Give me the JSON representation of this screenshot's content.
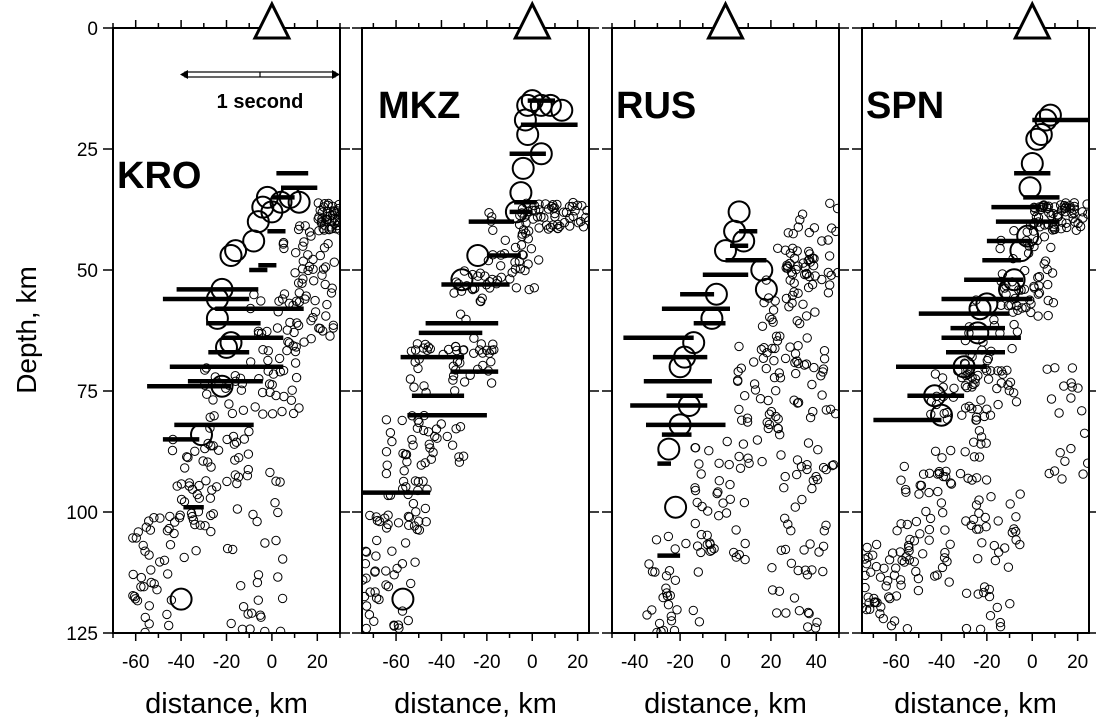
{
  "figure": {
    "ylabel": "Depth, km",
    "scale_bar_label": "1 second"
  },
  "chart_data": [
    {
      "type": "scatter",
      "station": "KRO",
      "xlabel": "distance, km",
      "xlim": [
        -70,
        30
      ],
      "ylim": [
        0,
        125
      ],
      "xticks": [
        -60,
        -40,
        -20,
        0,
        20
      ],
      "yticks": [
        0,
        25,
        50,
        75,
        100,
        125
      ],
      "grid": false,
      "seed": 11,
      "large_circles": [
        [
          -40,
          118
        ],
        [
          -31,
          84
        ],
        [
          -22,
          74
        ],
        [
          -18,
          65
        ],
        [
          -20,
          66
        ],
        [
          -24,
          60
        ],
        [
          -24,
          56
        ],
        [
          -22,
          54
        ],
        [
          -18,
          47
        ],
        [
          -16,
          46
        ],
        [
          -8,
          44
        ],
        [
          -6,
          40
        ],
        [
          -4,
          37
        ],
        [
          -2,
          35
        ],
        [
          0,
          38
        ],
        [
          4,
          36
        ],
        [
          8,
          35
        ],
        [
          12,
          36
        ]
      ],
      "bars": [
        [
          -48,
          -32,
          85
        ],
        [
          -39,
          -30,
          99
        ],
        [
          -43,
          -8,
          82
        ],
        [
          -55,
          -18,
          74
        ],
        [
          -37,
          -4,
          73
        ],
        [
          -45,
          5,
          70
        ],
        [
          -28,
          -10,
          67
        ],
        [
          -22,
          5,
          64
        ],
        [
          -29,
          -5,
          61
        ],
        [
          -25,
          14,
          58
        ],
        [
          -48,
          -10,
          56
        ],
        [
          -42,
          -6,
          54
        ],
        [
          -10,
          -2,
          50
        ],
        [
          -6,
          2,
          49
        ],
        [
          -2,
          6,
          42
        ],
        [
          0,
          10,
          35
        ],
        [
          4,
          20,
          33
        ],
        [
          2,
          16,
          30
        ]
      ],
      "small_clusters": [
        {
          "x": [
            -62,
            -40
          ],
          "y": [
            100,
            125
          ],
          "n": 40
        },
        {
          "x": [
            -45,
            -25
          ],
          "y": [
            85,
            110
          ],
          "n": 35
        },
        {
          "x": [
            -30,
            -10
          ],
          "y": [
            70,
            95
          ],
          "n": 40
        },
        {
          "x": [
            -10,
            12
          ],
          "y": [
            55,
            80
          ],
          "n": 50
        },
        {
          "x": [
            5,
            28
          ],
          "y": [
            40,
            65
          ],
          "n": 55
        },
        {
          "x": [
            20,
            30
          ],
          "y": [
            36,
            42
          ],
          "n": 40
        },
        {
          "x": [
            -20,
            5
          ],
          "y": [
            90,
            125
          ],
          "n": 30
        }
      ]
    },
    {
      "type": "scatter",
      "station": "MKZ",
      "xlabel": "distance, km",
      "xlim": [
        -75,
        25
      ],
      "ylim": [
        0,
        125
      ],
      "xticks": [
        -60,
        -40,
        -20,
        0,
        20
      ],
      "yticks": [
        0,
        25,
        50,
        75,
        100,
        125
      ],
      "grid": false,
      "seed": 23,
      "large_circles": [
        [
          -57,
          118
        ],
        [
          -31,
          52
        ],
        [
          -24,
          47
        ],
        [
          -7,
          38
        ],
        [
          -5,
          34
        ],
        [
          -4,
          29
        ],
        [
          -2,
          22
        ],
        [
          -3,
          19
        ],
        [
          -2,
          16
        ],
        [
          0,
          15
        ],
        [
          4,
          16
        ],
        [
          8,
          16
        ],
        [
          13,
          17
        ],
        [
          4,
          26
        ]
      ],
      "bars": [
        [
          -75,
          -45,
          96
        ],
        [
          -55,
          -20,
          80
        ],
        [
          -53,
          -30,
          76
        ],
        [
          -36,
          -15,
          71
        ],
        [
          -58,
          -30,
          68
        ],
        [
          -50,
          -22,
          63
        ],
        [
          -47,
          -15,
          61
        ],
        [
          -40,
          -10,
          53
        ],
        [
          -20,
          -5,
          47
        ],
        [
          -28,
          -8,
          40
        ],
        [
          -10,
          0,
          38
        ],
        [
          -8,
          2,
          36
        ],
        [
          -10,
          6,
          26
        ],
        [
          -5,
          20,
          20
        ],
        [
          -2,
          10,
          15
        ]
      ],
      "small_clusters": [
        {
          "x": [
            -75,
            -50
          ],
          "y": [
            100,
            125
          ],
          "n": 40
        },
        {
          "x": [
            -65,
            -45
          ],
          "y": [
            80,
            105
          ],
          "n": 40
        },
        {
          "x": [
            -55,
            -30
          ],
          "y": [
            65,
            90
          ],
          "n": 45
        },
        {
          "x": [
            -35,
            -15
          ],
          "y": [
            50,
            75
          ],
          "n": 45
        },
        {
          "x": [
            -20,
            5
          ],
          "y": [
            38,
            55
          ],
          "n": 40
        },
        {
          "x": [
            -5,
            25
          ],
          "y": [
            36,
            42
          ],
          "n": 50
        }
      ]
    },
    {
      "type": "scatter",
      "station": "RUS",
      "xlabel": "distance, km",
      "xlim": [
        -50,
        50
      ],
      "ylim": [
        0,
        125
      ],
      "xticks": [
        -40,
        -20,
        0,
        20,
        40
      ],
      "yticks": [
        0,
        25,
        50,
        75,
        100,
        125
      ],
      "grid": false,
      "seed": 37,
      "large_circles": [
        [
          -22,
          99
        ],
        [
          -25,
          87
        ],
        [
          -20,
          82
        ],
        [
          -16,
          78
        ],
        [
          -20,
          70
        ],
        [
          -18,
          68
        ],
        [
          -14,
          65
        ],
        [
          -6,
          60
        ],
        [
          -4,
          55
        ],
        [
          0,
          46
        ],
        [
          4,
          42
        ],
        [
          6,
          38
        ],
        [
          8,
          44
        ],
        [
          16,
          50
        ],
        [
          18,
          54
        ]
      ],
      "bars": [
        [
          -30,
          -20,
          109
        ],
        [
          -30,
          -24,
          90
        ],
        [
          -28,
          -15,
          84
        ],
        [
          -35,
          0,
          82
        ],
        [
          -42,
          -8,
          78
        ],
        [
          -26,
          -10,
          76
        ],
        [
          -36,
          -6,
          73
        ],
        [
          -32,
          -8,
          68
        ],
        [
          -45,
          -14,
          64
        ],
        [
          -14,
          0,
          61
        ],
        [
          -28,
          2,
          58
        ],
        [
          -20,
          -5,
          55
        ],
        [
          -10,
          10,
          51
        ],
        [
          0,
          18,
          48
        ],
        [
          2,
          10,
          45
        ],
        [
          6,
          14,
          42
        ]
      ],
      "small_clusters": [
        {
          "x": [
            -35,
            -5
          ],
          "y": [
            105,
            125
          ],
          "n": 30
        },
        {
          "x": [
            -15,
            10
          ],
          "y": [
            85,
            110
          ],
          "n": 40
        },
        {
          "x": [
            5,
            25
          ],
          "y": [
            65,
            90
          ],
          "n": 40
        },
        {
          "x": [
            15,
            40
          ],
          "y": [
            45,
            70
          ],
          "n": 45
        },
        {
          "x": [
            25,
            50
          ],
          "y": [
            36,
            55
          ],
          "n": 40
        },
        {
          "x": [
            20,
            45
          ],
          "y": [
            90,
            125
          ],
          "n": 40
        },
        {
          "x": [
            30,
            50
          ],
          "y": [
            65,
            95
          ],
          "n": 30
        }
      ]
    },
    {
      "type": "scatter",
      "station": "SPN",
      "xlabel": "distance, km",
      "xlim": [
        -75,
        25
      ],
      "ylim": [
        0,
        125
      ],
      "xticks": [
        -60,
        -40,
        -20,
        0,
        20
      ],
      "yticks": [
        0,
        25,
        50,
        75,
        100,
        125
      ],
      "grid": false,
      "seed": 53,
      "large_circles": [
        [
          -43,
          76
        ],
        [
          -40,
          80
        ],
        [
          -30,
          70
        ],
        [
          -24,
          63
        ],
        [
          -23,
          58
        ],
        [
          -20,
          57
        ],
        [
          -10,
          54
        ],
        [
          -8,
          52
        ],
        [
          -5,
          46
        ],
        [
          -2,
          43
        ],
        [
          -1,
          33
        ],
        [
          0,
          28
        ],
        [
          2,
          23
        ],
        [
          4,
          22
        ],
        [
          6,
          19
        ],
        [
          8,
          18
        ]
      ],
      "bars": [
        [
          -70,
          -40,
          81
        ],
        [
          -55,
          -30,
          76
        ],
        [
          -60,
          -20,
          70
        ],
        [
          -38,
          -12,
          67
        ],
        [
          -40,
          -5,
          64
        ],
        [
          -36,
          -12,
          62
        ],
        [
          -50,
          -10,
          59
        ],
        [
          -40,
          0,
          56
        ],
        [
          -30,
          -4,
          52
        ],
        [
          -22,
          -5,
          48
        ],
        [
          -20,
          0,
          44
        ],
        [
          -16,
          12,
          40
        ],
        [
          -18,
          4,
          37
        ],
        [
          -4,
          12,
          35
        ],
        [
          -8,
          8,
          30
        ],
        [
          0,
          25,
          19
        ]
      ],
      "small_clusters": [
        {
          "x": [
            -75,
            -50
          ],
          "y": [
            105,
            125
          ],
          "n": 45
        },
        {
          "x": [
            -60,
            -35
          ],
          "y": [
            90,
            115
          ],
          "n": 45
        },
        {
          "x": [
            -45,
            -20
          ],
          "y": [
            70,
            95
          ],
          "n": 50
        },
        {
          "x": [
            -30,
            -5
          ],
          "y": [
            55,
            80
          ],
          "n": 50
        },
        {
          "x": [
            -15,
            10
          ],
          "y": [
            40,
            60
          ],
          "n": 50
        },
        {
          "x": [
            0,
            25
          ],
          "y": [
            36,
            42
          ],
          "n": 60
        },
        {
          "x": [
            -30,
            -5
          ],
          "y": [
            95,
            125
          ],
          "n": 40
        },
        {
          "x": [
            5,
            25
          ],
          "y": [
            70,
            95
          ],
          "n": 20
        }
      ]
    }
  ]
}
